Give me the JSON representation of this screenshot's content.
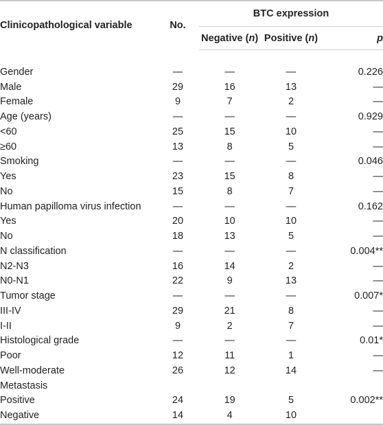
{
  "header": {
    "variable": "Clinicopathological variable",
    "no": "No.",
    "group": "BTC expression",
    "negative": "Negative (n)",
    "positive": "Positive (n)",
    "p": "p"
  },
  "rows": [
    [
      "Gender",
      "—",
      "—",
      "—",
      "0.226"
    ],
    [
      "Male",
      "29",
      "16",
      "13",
      "—"
    ],
    [
      "Female",
      "9",
      "7",
      "2",
      "—"
    ],
    [
      "Age (years)",
      "—",
      "—",
      "—",
      "0.929"
    ],
    [
      "<60",
      "25",
      "15",
      "10",
      "—"
    ],
    [
      "≥60",
      "13",
      "8",
      "5",
      "—"
    ],
    [
      "Smoking",
      "—",
      "—",
      "—",
      "0.046"
    ],
    [
      "Yes",
      "23",
      "15",
      "8",
      "—"
    ],
    [
      "No",
      "15",
      "8",
      "7",
      "—"
    ],
    [
      "Human papilloma virus infection",
      "—",
      "—",
      "—",
      "0.162"
    ],
    [
      "Yes",
      "20",
      "10",
      "10",
      "—"
    ],
    [
      "No",
      "18",
      "13",
      "5",
      "—"
    ],
    [
      "N classification",
      "—",
      "—",
      "—",
      "0.004**"
    ],
    [
      "N2-N3",
      "16",
      "14",
      "2",
      "—"
    ],
    [
      "N0-N1",
      "22",
      "9",
      "13",
      "—"
    ],
    [
      "Tumor stage",
      "—",
      "—",
      "—",
      "0.007*"
    ],
    [
      "III-IV",
      "29",
      "21",
      "8",
      "—"
    ],
    [
      "I-II",
      "9",
      "2",
      "7",
      "—"
    ],
    [
      "Histological grade",
      "—",
      "—",
      "—",
      "0.01*"
    ],
    [
      "Poor",
      "12",
      "11",
      "1",
      "—"
    ],
    [
      "Well-moderate",
      "26",
      "12",
      "14",
      "—"
    ],
    [
      "Metastasis",
      "",
      "",
      "",
      ""
    ],
    [
      "Positive",
      "24",
      "19",
      "5",
      "0.002**"
    ],
    [
      "Negative",
      "14",
      "4",
      "10",
      ""
    ]
  ]
}
